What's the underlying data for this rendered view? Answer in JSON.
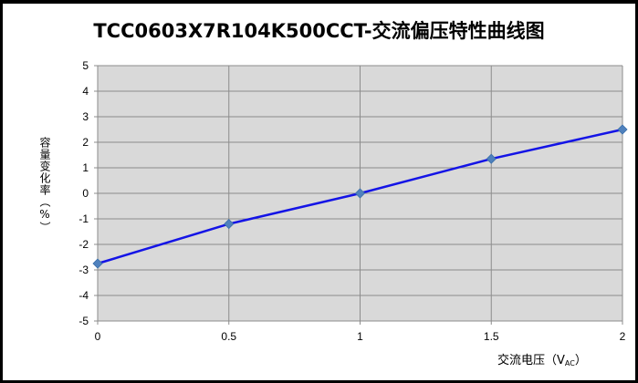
{
  "chart_data": {
    "type": "line",
    "title": "TCC0603X7R104K500CCT-交流偏压特性曲线图",
    "ylabel": "容量变化率（%）",
    "xlabel_main": "交流电压（V",
    "xlabel_sub": "AC",
    "xlabel_close": "）",
    "x": [
      0,
      0.5,
      1,
      1.5,
      2
    ],
    "series": [
      {
        "values": [
          -2.75,
          -1.2,
          0,
          1.35,
          2.5
        ]
      }
    ],
    "xlim": [
      0,
      2
    ],
    "ylim": [
      -5,
      5
    ],
    "xticks": [
      "0",
      "0.5",
      "1",
      "1.5",
      "2"
    ],
    "yticks": [
      "5",
      "4",
      "3",
      "2",
      "1",
      "0",
      "-1",
      "-2",
      "-3",
      "-4",
      "-5"
    ],
    "grid": true,
    "line_color": "#1414E6",
    "marker_color": "#4F81BD",
    "plot_bg": "#D9D9D9"
  }
}
